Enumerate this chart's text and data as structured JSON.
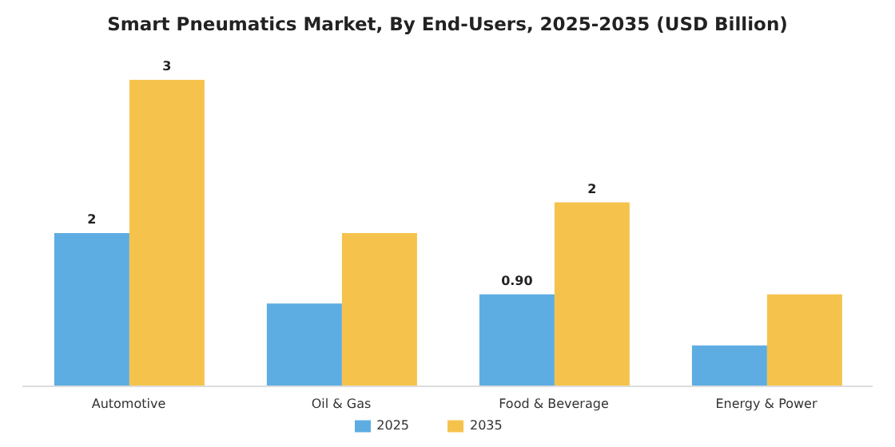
{
  "chart_data": {
    "type": "bar",
    "title": "Smart Pneumatics Market, By End-Users, 2025-2035 (USD Billion)",
    "categories": [
      "Automotive",
      "Oil & Gas",
      "Food & Beverage",
      "Energy & Power"
    ],
    "series": [
      {
        "name": "2025",
        "color": "#5dade2",
        "values": [
          1.5,
          0.81,
          0.9,
          0.4
        ],
        "value_labels": [
          "2",
          null,
          "0.90",
          null
        ]
      },
      {
        "name": "2035",
        "color": "#f5c34c",
        "values": [
          3.0,
          1.5,
          1.8,
          0.9
        ],
        "value_labels": [
          "3",
          null,
          "2",
          null
        ]
      }
    ],
    "grid": false,
    "legend": "bottom"
  }
}
